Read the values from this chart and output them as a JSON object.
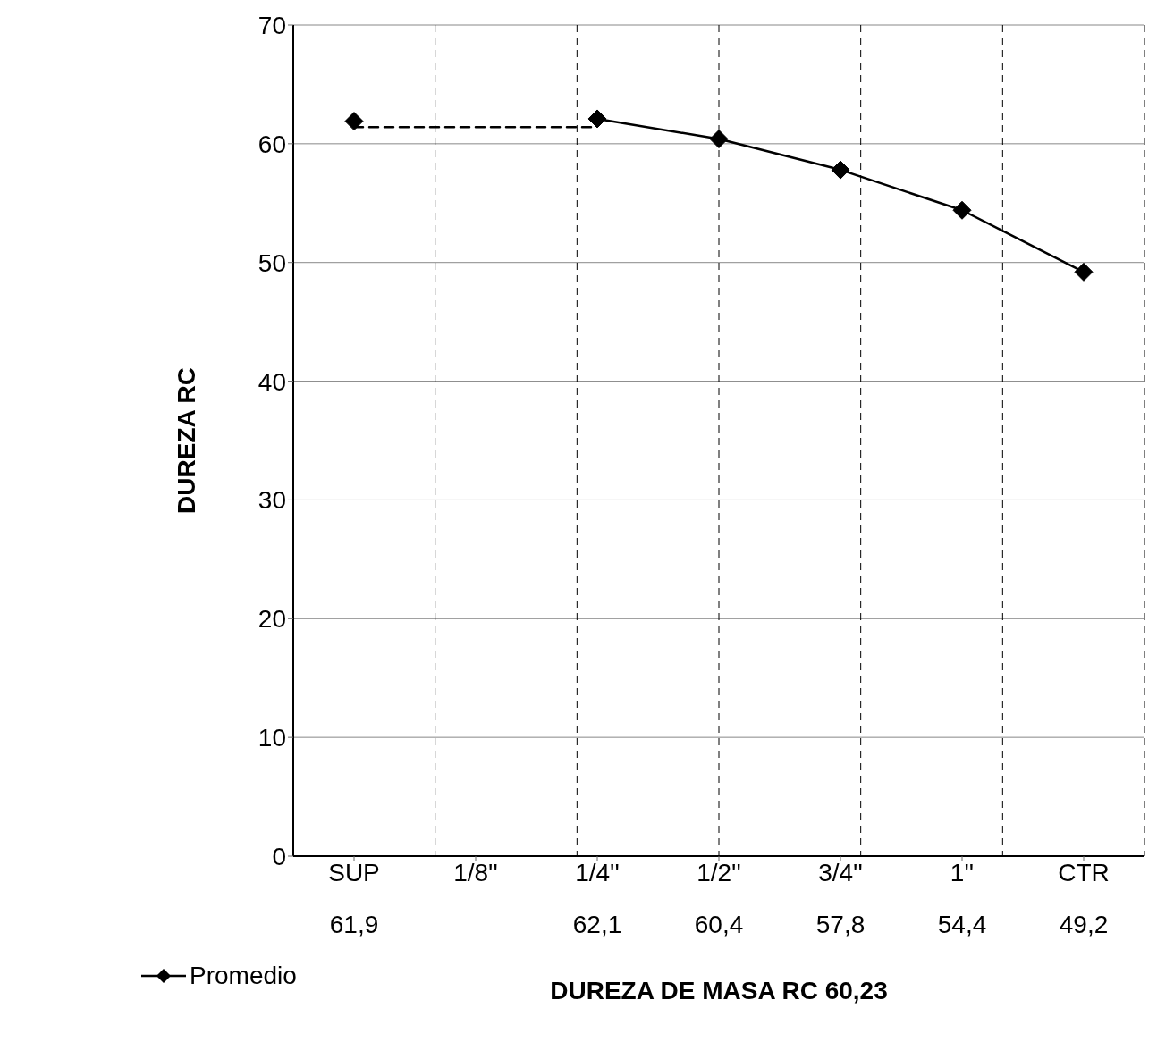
{
  "chart_data": {
    "type": "line",
    "xlabel": "DUREZA DE MASA RC  60,23",
    "ylabel": "DUREZA RC",
    "categories": [
      "SUP",
      "1/8''",
      "1/4''",
      "1/2''",
      "3/4''",
      "1''",
      "CTR"
    ],
    "series": [
      {
        "name": "Promedio",
        "color": "#000000",
        "marker": "diamond",
        "line_style": "solid",
        "values": [
          61.9,
          null,
          62.1,
          60.4,
          57.8,
          54.4,
          49.2
        ],
        "value_labels": [
          "61,9",
          null,
          "62,1",
          "60,4",
          "57,8",
          "54,4",
          "49,2"
        ]
      },
      {
        "color": "#000000",
        "marker": "none",
        "line_style": "dashed",
        "values": [
          61.4,
          61.4,
          61.4,
          null,
          null,
          null,
          null
        ]
      }
    ],
    "ylim": [
      0,
      70
    ],
    "yticks": [
      0,
      10,
      20,
      30,
      40,
      50,
      60,
      70
    ],
    "grid": true,
    "legend": "bottom left"
  }
}
